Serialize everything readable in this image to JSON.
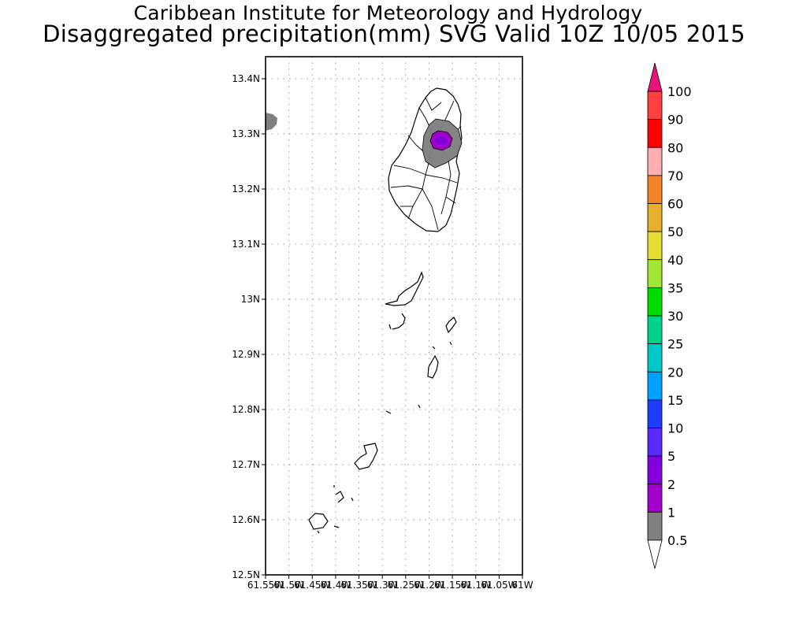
{
  "titles": {
    "line1": "Caribbean Institute for Meteorology and Hydrology",
    "line2": "Disaggregated precipitation(mm) SVG Valid 10Z 10/05 2015"
  },
  "axes": {
    "lat_ticks": [
      "13.4N",
      "13.3N",
      "13.2N",
      "13.1N",
      "13N",
      "12.9N",
      "12.8N",
      "12.7N",
      "12.6N",
      "12.5N"
    ],
    "lon_ticks": [
      "61.55W",
      "61.5W",
      "61.45W",
      "61.4W",
      "61.35W",
      "61.3W",
      "61.25W",
      "61.2W",
      "61.15W",
      "61.1W",
      "61.05W",
      "61W"
    ]
  },
  "colorbar": {
    "levels": [
      "0.5",
      "1",
      "2",
      "5",
      "10",
      "15",
      "20",
      "25",
      "30",
      "35",
      "40",
      "50",
      "60",
      "70",
      "80",
      "90",
      "100"
    ],
    "colors": [
      "#808080",
      "#a000c8",
      "#8200dc",
      "#5a28ff",
      "#1e3cff",
      "#00a0ff",
      "#00c8c8",
      "#00d28c",
      "#00dc00",
      "#a0e632",
      "#e6dc32",
      "#e6af2d",
      "#f08228",
      "#ffafaf",
      "#ff0000",
      "#ff4040",
      "#e6147a"
    ]
  },
  "map": {
    "region": "St. Vincent and the Grenadines",
    "lon_range": [
      -61.55,
      -61.0
    ],
    "lat_range": [
      12.5,
      13.45
    ],
    "precip_areas": [
      {
        "name": "north-st-vincent-rain",
        "level": "0.5-1"
      },
      {
        "name": "core-rain",
        "level": "1-2"
      },
      {
        "name": "west-edge-rain",
        "level": "0.5-1"
      }
    ],
    "colors": {
      "frame": "#000000",
      "grid": "#9a9a9a",
      "coast": "#000000",
      "land": "#ffffff"
    }
  }
}
